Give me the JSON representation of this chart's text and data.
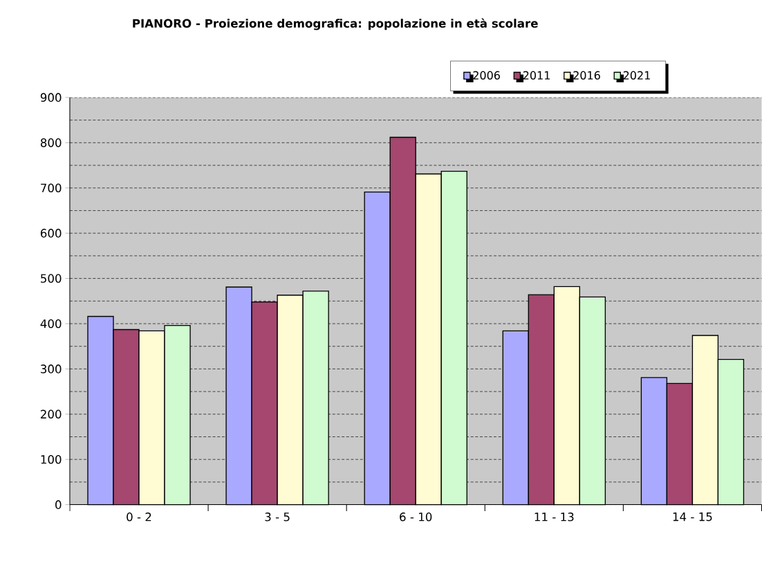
{
  "chart_data": {
    "type": "bar",
    "title": "PIANORO - Proiezione demografica: popolazione in età scolare",
    "categories": [
      "0 - 2",
      "3 - 5",
      "6 - 10",
      "11 - 13",
      "14 - 15"
    ],
    "series": [
      {
        "name": "2006",
        "color": "#a9a9ff",
        "values": [
          416,
          481,
          691,
          384,
          281
        ]
      },
      {
        "name": "2011",
        "color": "#a5476f",
        "values": [
          387,
          448,
          812,
          464,
          268
        ]
      },
      {
        "name": "2016",
        "color": "#fffbd2",
        "values": [
          384,
          463,
          731,
          482,
          374
        ]
      },
      {
        "name": "2021",
        "color": "#d0fad0",
        "values": [
          396,
          472,
          737,
          459,
          321
        ]
      }
    ],
    "ylim": [
      0,
      900
    ],
    "yticks": [
      0,
      100,
      200,
      300,
      400,
      500,
      600,
      700,
      800,
      900
    ],
    "grid": "y",
    "legend": "top right"
  }
}
